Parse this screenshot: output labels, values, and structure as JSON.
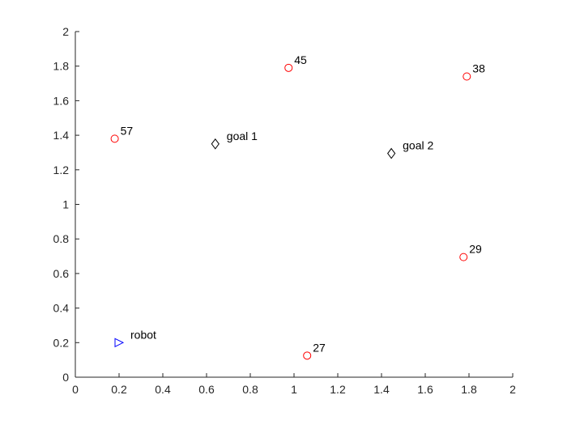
{
  "chart_data": {
    "type": "scatter",
    "title": "",
    "xlabel": "",
    "ylabel": "",
    "xlim": [
      0,
      2
    ],
    "ylim": [
      0,
      2
    ],
    "grid": false,
    "legend": "none",
    "xticks": [
      "0",
      "0.2",
      "0.4",
      "0.6",
      "0.8",
      "1",
      "1.2",
      "1.4",
      "1.6",
      "1.8",
      "2"
    ],
    "yticks": [
      "0",
      "0.2",
      "0.4",
      "0.6",
      "0.8",
      "1",
      "1.2",
      "1.4",
      "1.6",
      "1.8",
      "2"
    ],
    "series": [
      {
        "marker": "circle",
        "color": "#ff0000",
        "points": [
          {
            "x": 0.18,
            "y": 1.38,
            "label": "57"
          },
          {
            "x": 0.975,
            "y": 1.79,
            "label": "45"
          },
          {
            "x": 1.79,
            "y": 1.74,
            "label": "38"
          },
          {
            "x": 1.775,
            "y": 0.695,
            "label": "29"
          },
          {
            "x": 1.06,
            "y": 0.125,
            "label": "27"
          }
        ]
      },
      {
        "marker": "diamond",
        "color": "#000000",
        "points": [
          {
            "x": 0.64,
            "y": 1.35,
            "label": "goal 1"
          },
          {
            "x": 1.445,
            "y": 1.295,
            "label": "goal 2"
          }
        ]
      },
      {
        "marker": "triangle-right",
        "color": "#0000ff",
        "points": [
          {
            "x": 0.2,
            "y": 0.2,
            "label": "robot"
          }
        ]
      }
    ]
  }
}
